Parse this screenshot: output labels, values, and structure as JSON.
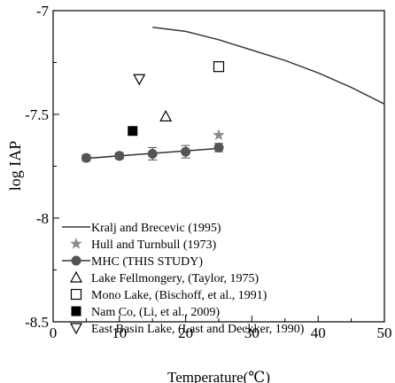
{
  "chart_data": {
    "type": "scatter",
    "title": "",
    "xlabel": "Temperature(℃)",
    "ylabel": "log IAP",
    "xlim": [
      0,
      50
    ],
    "ylim": [
      -8.5,
      -7
    ],
    "grid": false,
    "legend_position": "bottom-left",
    "x_ticks": [
      "0",
      "10",
      "20",
      "30",
      "40",
      "50"
    ],
    "y_ticks": [
      "-7",
      "-7.5",
      "-8",
      "-8.5"
    ],
    "series": [
      {
        "name": "Kralj and Brecevic (1995)",
        "marker": "line",
        "color": "#3a3a3a",
        "x": [
          15,
          20,
          25,
          30,
          35,
          40,
          45,
          50
        ],
        "y": [
          -7.08,
          -7.1,
          -7.14,
          -7.19,
          -7.24,
          -7.3,
          -7.37,
          -7.45
        ]
      },
      {
        "name": "Hull and Turnbull (1973)",
        "marker": "star",
        "color": "#8c8c8c",
        "x": [
          25
        ],
        "y": [
          -7.6
        ]
      },
      {
        "name": "MHC (THIS STUDY)",
        "marker": "filled-circle-line",
        "color": "#555555",
        "x": [
          5,
          10,
          15,
          20,
          25
        ],
        "y": [
          -7.71,
          -7.7,
          -7.69,
          -7.68,
          -7.66
        ],
        "error": [
          0.015,
          0.015,
          0.03,
          0.03,
          0.02
        ]
      },
      {
        "name": "Lake Fellmongery, (Taylor, 1975)",
        "marker": "open-triangle-up",
        "color": "#000000",
        "x": [
          17
        ],
        "y": [
          -7.51
        ]
      },
      {
        "name": "Mono Lake, (Bischoff, et al., 1991)",
        "marker": "open-square",
        "color": "#000000",
        "x": [
          25
        ],
        "y": [
          -7.27
        ]
      },
      {
        "name": "Nam Co, (Li, et al., 2009)",
        "marker": "filled-square",
        "color": "#000000",
        "x": [
          12
        ],
        "y": [
          -7.58
        ]
      },
      {
        "name": "East Basin Lake, (Last and Deckker, 1990)",
        "marker": "open-triangle-down",
        "color": "#000000",
        "x": [
          13
        ],
        "y": [
          -7.33
        ]
      }
    ]
  }
}
